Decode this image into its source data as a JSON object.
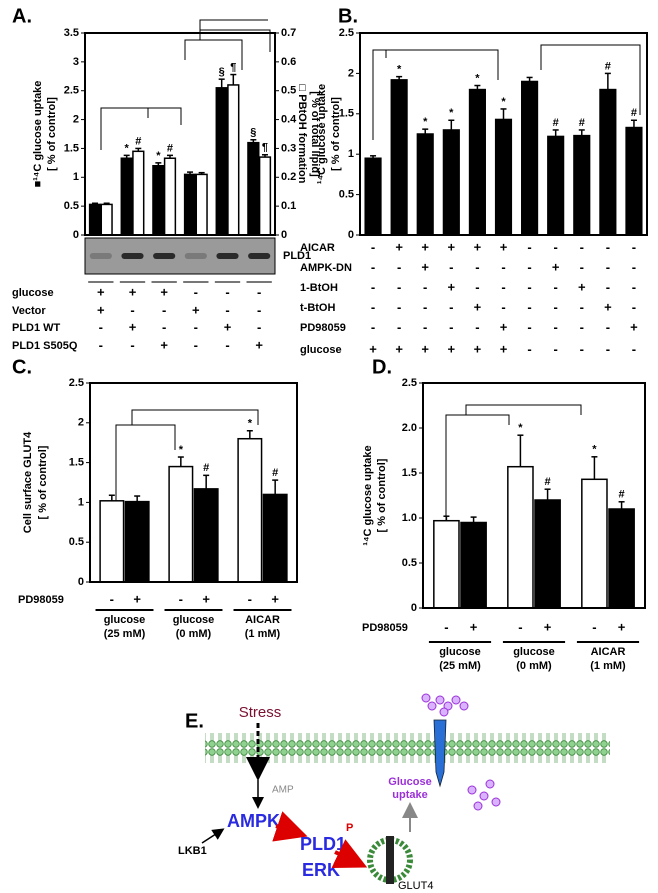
{
  "chart_data": [
    {
      "type": "bar",
      "label": "A.",
      "ylabel": [
        "■¹⁴C glucose uptake",
        "[ % of control]"
      ],
      "y2label": [
        "□ PBtOH formation",
        "[ % of total lipid]"
      ],
      "ylim": [
        0,
        3.5
      ],
      "yticks": [
        0,
        0.5,
        1,
        1.5,
        2,
        2.5,
        3,
        3.5
      ],
      "y2lim": [
        0,
        0.7
      ],
      "y2ticks": [
        0,
        0.1,
        0.2,
        0.3,
        0.4,
        0.5,
        0.6,
        0.7
      ],
      "series": [
        {
          "color": "#000000",
          "values": [
            0.53,
            1.33,
            1.2,
            1.05,
            2.55,
            1.6
          ],
          "errors": [
            0.02,
            0.05,
            0.05,
            0.04,
            0.15,
            0.05
          ],
          "annotations": [
            null,
            "*",
            "*",
            null,
            "§",
            "§"
          ]
        },
        {
          "color": "#ffffff",
          "axis": "y2",
          "values": [
            0.106,
            0.29,
            0.266,
            0.21,
            0.52,
            0.27
          ],
          "errors": [
            0.004,
            0.01,
            0.01,
            0.006,
            0.036,
            0.008
          ],
          "annotations": [
            null,
            "#",
            "#",
            null,
            "¶",
            "¶"
          ]
        }
      ],
      "blot_label": "PLD1",
      "conditions": [
        {
          "label": "glucose",
          "signs": [
            "+",
            "+",
            "+",
            "-",
            "-",
            "-"
          ]
        },
        {
          "label": "Vector",
          "signs": [
            "+",
            "-",
            "-",
            "+",
            "-",
            "-"
          ]
        },
        {
          "label": "PLD1 WT",
          "signs": [
            "-",
            "+",
            "-",
            "-",
            "+",
            "-"
          ]
        },
        {
          "label": "PLD1 S505Q",
          "signs": [
            "-",
            "-",
            "+",
            "-",
            "-",
            "+"
          ]
        }
      ]
    },
    {
      "type": "bar",
      "label": "B.",
      "ylabel": [
        "¹⁴C glucose uptake",
        "[ % of control]"
      ],
      "ylim": [
        0,
        2.5
      ],
      "yticks": [
        0,
        0.5,
        1,
        1.5,
        2,
        2.5
      ],
      "series": [
        {
          "color": "#000000",
          "values": [
            0.95,
            1.92,
            1.25,
            1.3,
            1.8,
            1.43,
            1.9,
            1.22,
            1.23,
            1.8,
            1.33
          ],
          "errors": [
            0.03,
            0.04,
            0.06,
            0.12,
            0.05,
            0.13,
            0.05,
            0.08,
            0.07,
            0.2,
            0.09
          ],
          "annotations": [
            null,
            "*",
            "*",
            "*",
            "*",
            "*",
            null,
            "#",
            "#",
            "#",
            "#"
          ]
        }
      ],
      "conditions": [
        {
          "label": "AICAR",
          "signs": [
            "-",
            "+",
            "+",
            "+",
            "+",
            "+",
            "-",
            "-",
            "-",
            "-",
            "-"
          ]
        },
        {
          "label": "AMPK-DN",
          "signs": [
            "-",
            "-",
            "+",
            "-",
            "-",
            "-",
            "-",
            "+",
            "-",
            "-",
            "-"
          ]
        },
        {
          "label": "1-BtOH",
          "signs": [
            "-",
            "-",
            "-",
            "+",
            "-",
            "-",
            "-",
            "-",
            "+",
            "-",
            "-"
          ]
        },
        {
          "label": "t-BtOH",
          "signs": [
            "-",
            "-",
            "-",
            "-",
            "+",
            "-",
            "-",
            "-",
            "-",
            "+",
            "-"
          ]
        },
        {
          "label": "PD98059",
          "signs": [
            "-",
            "-",
            "-",
            "-",
            "-",
            "+",
            "-",
            "-",
            "-",
            "-",
            "+"
          ]
        },
        {
          "label": "glucose",
          "signs": [
            "+",
            "+",
            "+",
            "+",
            "+",
            "+",
            "-",
            "-",
            "-",
            "-",
            "-"
          ]
        }
      ]
    },
    {
      "type": "bar",
      "label": "C.",
      "ylabel": [
        "Cell surface GLUT4",
        "[ % of control]"
      ],
      "ylim": [
        0,
        2.5
      ],
      "yticks": [
        0,
        0.5,
        1,
        1.5,
        2,
        2.5
      ],
      "categories": [
        [
          "glucose",
          "(25 mM)"
        ],
        [
          "glucose",
          "(0 mM)"
        ],
        [
          "AICAR",
          "(1 mM)"
        ]
      ],
      "series": [
        {
          "color": "#ffffff",
          "values": [
            1.02,
            1.45,
            1.8
          ],
          "errors": [
            0.07,
            0.12,
            0.1
          ],
          "annotations": [
            null,
            "*",
            "*"
          ]
        },
        {
          "color": "#000000",
          "values": [
            1.01,
            1.17,
            1.1
          ],
          "errors": [
            0.07,
            0.17,
            0.18
          ],
          "annotations": [
            null,
            "#",
            "#"
          ]
        }
      ],
      "conditions": [
        {
          "label": "PD98059",
          "signs": [
            "-",
            "+",
            "-",
            "+",
            "-",
            "+"
          ]
        }
      ]
    },
    {
      "type": "bar",
      "label": "D.",
      "ylabel": [
        "¹⁴C glucose uptake",
        "[ % of control]"
      ],
      "ylim": [
        0,
        2.5
      ],
      "yticks": [
        0,
        0.5,
        {
          "value": 1,
          "label": "1.0"
        },
        1.5,
        {
          "value": 2,
          "label": "2.0"
        },
        2.5
      ],
      "categories": [
        [
          "glucose",
          "(25 mM)"
        ],
        [
          "glucose",
          "(0 mM)"
        ],
        [
          "AICAR",
          "(1 mM)"
        ]
      ],
      "series": [
        {
          "color": "#ffffff",
          "values": [
            0.97,
            1.57,
            1.43
          ],
          "errors": [
            0.05,
            0.35,
            0.25
          ],
          "annotations": [
            null,
            "*",
            "*"
          ]
        },
        {
          "color": "#000000",
          "values": [
            0.95,
            1.2,
            1.1
          ],
          "errors": [
            0.06,
            0.12,
            0.08
          ],
          "annotations": [
            null,
            "#",
            "#"
          ]
        }
      ],
      "conditions": [
        {
          "label": "PD98059",
          "signs": [
            "-",
            "+",
            "-",
            "+",
            "-",
            "+"
          ]
        }
      ]
    }
  ],
  "diagram": {
    "label": "E.",
    "stress": "Stress",
    "amp": "AMP",
    "ampk": "AMPK",
    "lkb1": "LKB1",
    "pld1": "PLD1",
    "phospho": "P",
    "erk": "ERK",
    "glut4": "GLUT4",
    "uptake": [
      "Glucose",
      "uptake"
    ]
  }
}
